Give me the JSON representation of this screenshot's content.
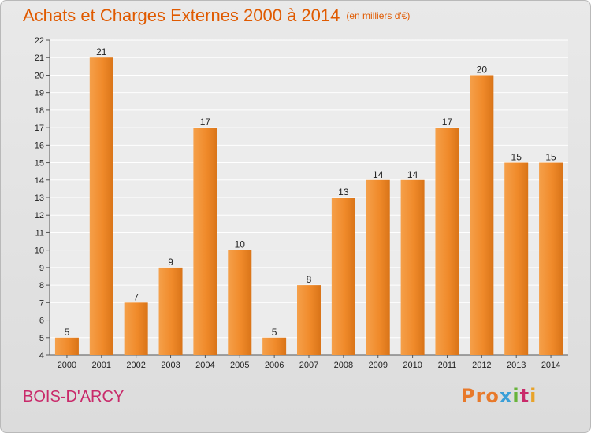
{
  "chart_data": {
    "type": "bar",
    "title": "Achats et Charges Externes 2000 à 2014",
    "subtitle": "(en milliers d'€)",
    "categories": [
      "2000",
      "2001",
      "2002",
      "2003",
      "2004",
      "2005",
      "2006",
      "2007",
      "2008",
      "2009",
      "2010",
      "2011",
      "2012",
      "2013",
      "2014"
    ],
    "values": [
      5,
      21,
      7,
      9,
      17,
      10,
      5,
      8,
      13,
      14,
      14,
      17,
      20,
      15,
      15
    ],
    "ylim": [
      4,
      22
    ],
    "yticks": [
      4,
      5,
      6,
      7,
      8,
      9,
      10,
      11,
      12,
      13,
      14,
      15,
      16,
      17,
      18,
      19,
      20,
      21,
      22
    ],
    "grid": true,
    "bar_color": "#f08a2a"
  },
  "footer": {
    "city": "BOIS-D'ARCY",
    "logo": [
      "Pro",
      "x",
      "i",
      "t",
      "i"
    ]
  }
}
